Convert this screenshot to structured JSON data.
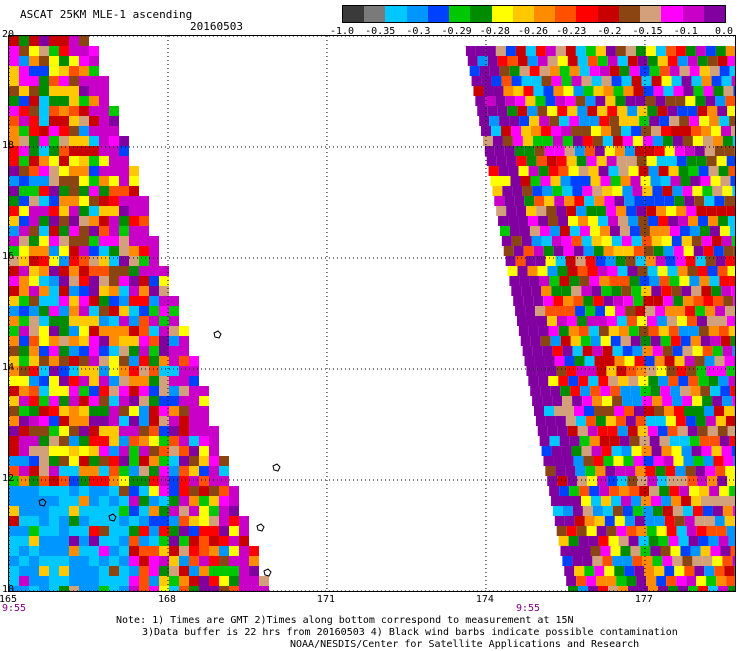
{
  "header": {
    "title": "ASCAT 25KM MLE-1 ascending",
    "date": "20160503"
  },
  "colorbar": {
    "colors": [
      "#3a3a3a",
      "#7a7a7a",
      "#00c8ff",
      "#0096ff",
      "#0040ff",
      "#00c800",
      "#008c00",
      "#ffff00",
      "#ffc800",
      "#ff8c00",
      "#ff5000",
      "#ff0000",
      "#c80000",
      "#8b4513",
      "#d2a07a",
      "#ff00ff",
      "#c800c8",
      "#8000a0"
    ],
    "labels": [
      "-1.0",
      "-0.35",
      "-0.3",
      "-0.29",
      "-0.28",
      "-0.26",
      "-0.23",
      "-0.2",
      "-0.15",
      "-0.1",
      "0.0"
    ]
  },
  "map": {
    "lat_labels": [
      "20",
      "18",
      "16",
      "14",
      "12",
      "10"
    ],
    "lon_labels": [
      "165",
      "168",
      "171",
      "174",
      "177"
    ],
    "time_labels": [
      "9:55",
      "9:55"
    ]
  },
  "notes": {
    "line1": "Note: 1) Times are GMT 2)Times along bottom correspond to measurement at 15N",
    "line2": "3)Data buffer is 22 hrs from 20160503 4) Black wind barbs indicate possible contamination",
    "line3": "NOAA/NESDIS/Center for Satellite Applications and Research"
  }
}
